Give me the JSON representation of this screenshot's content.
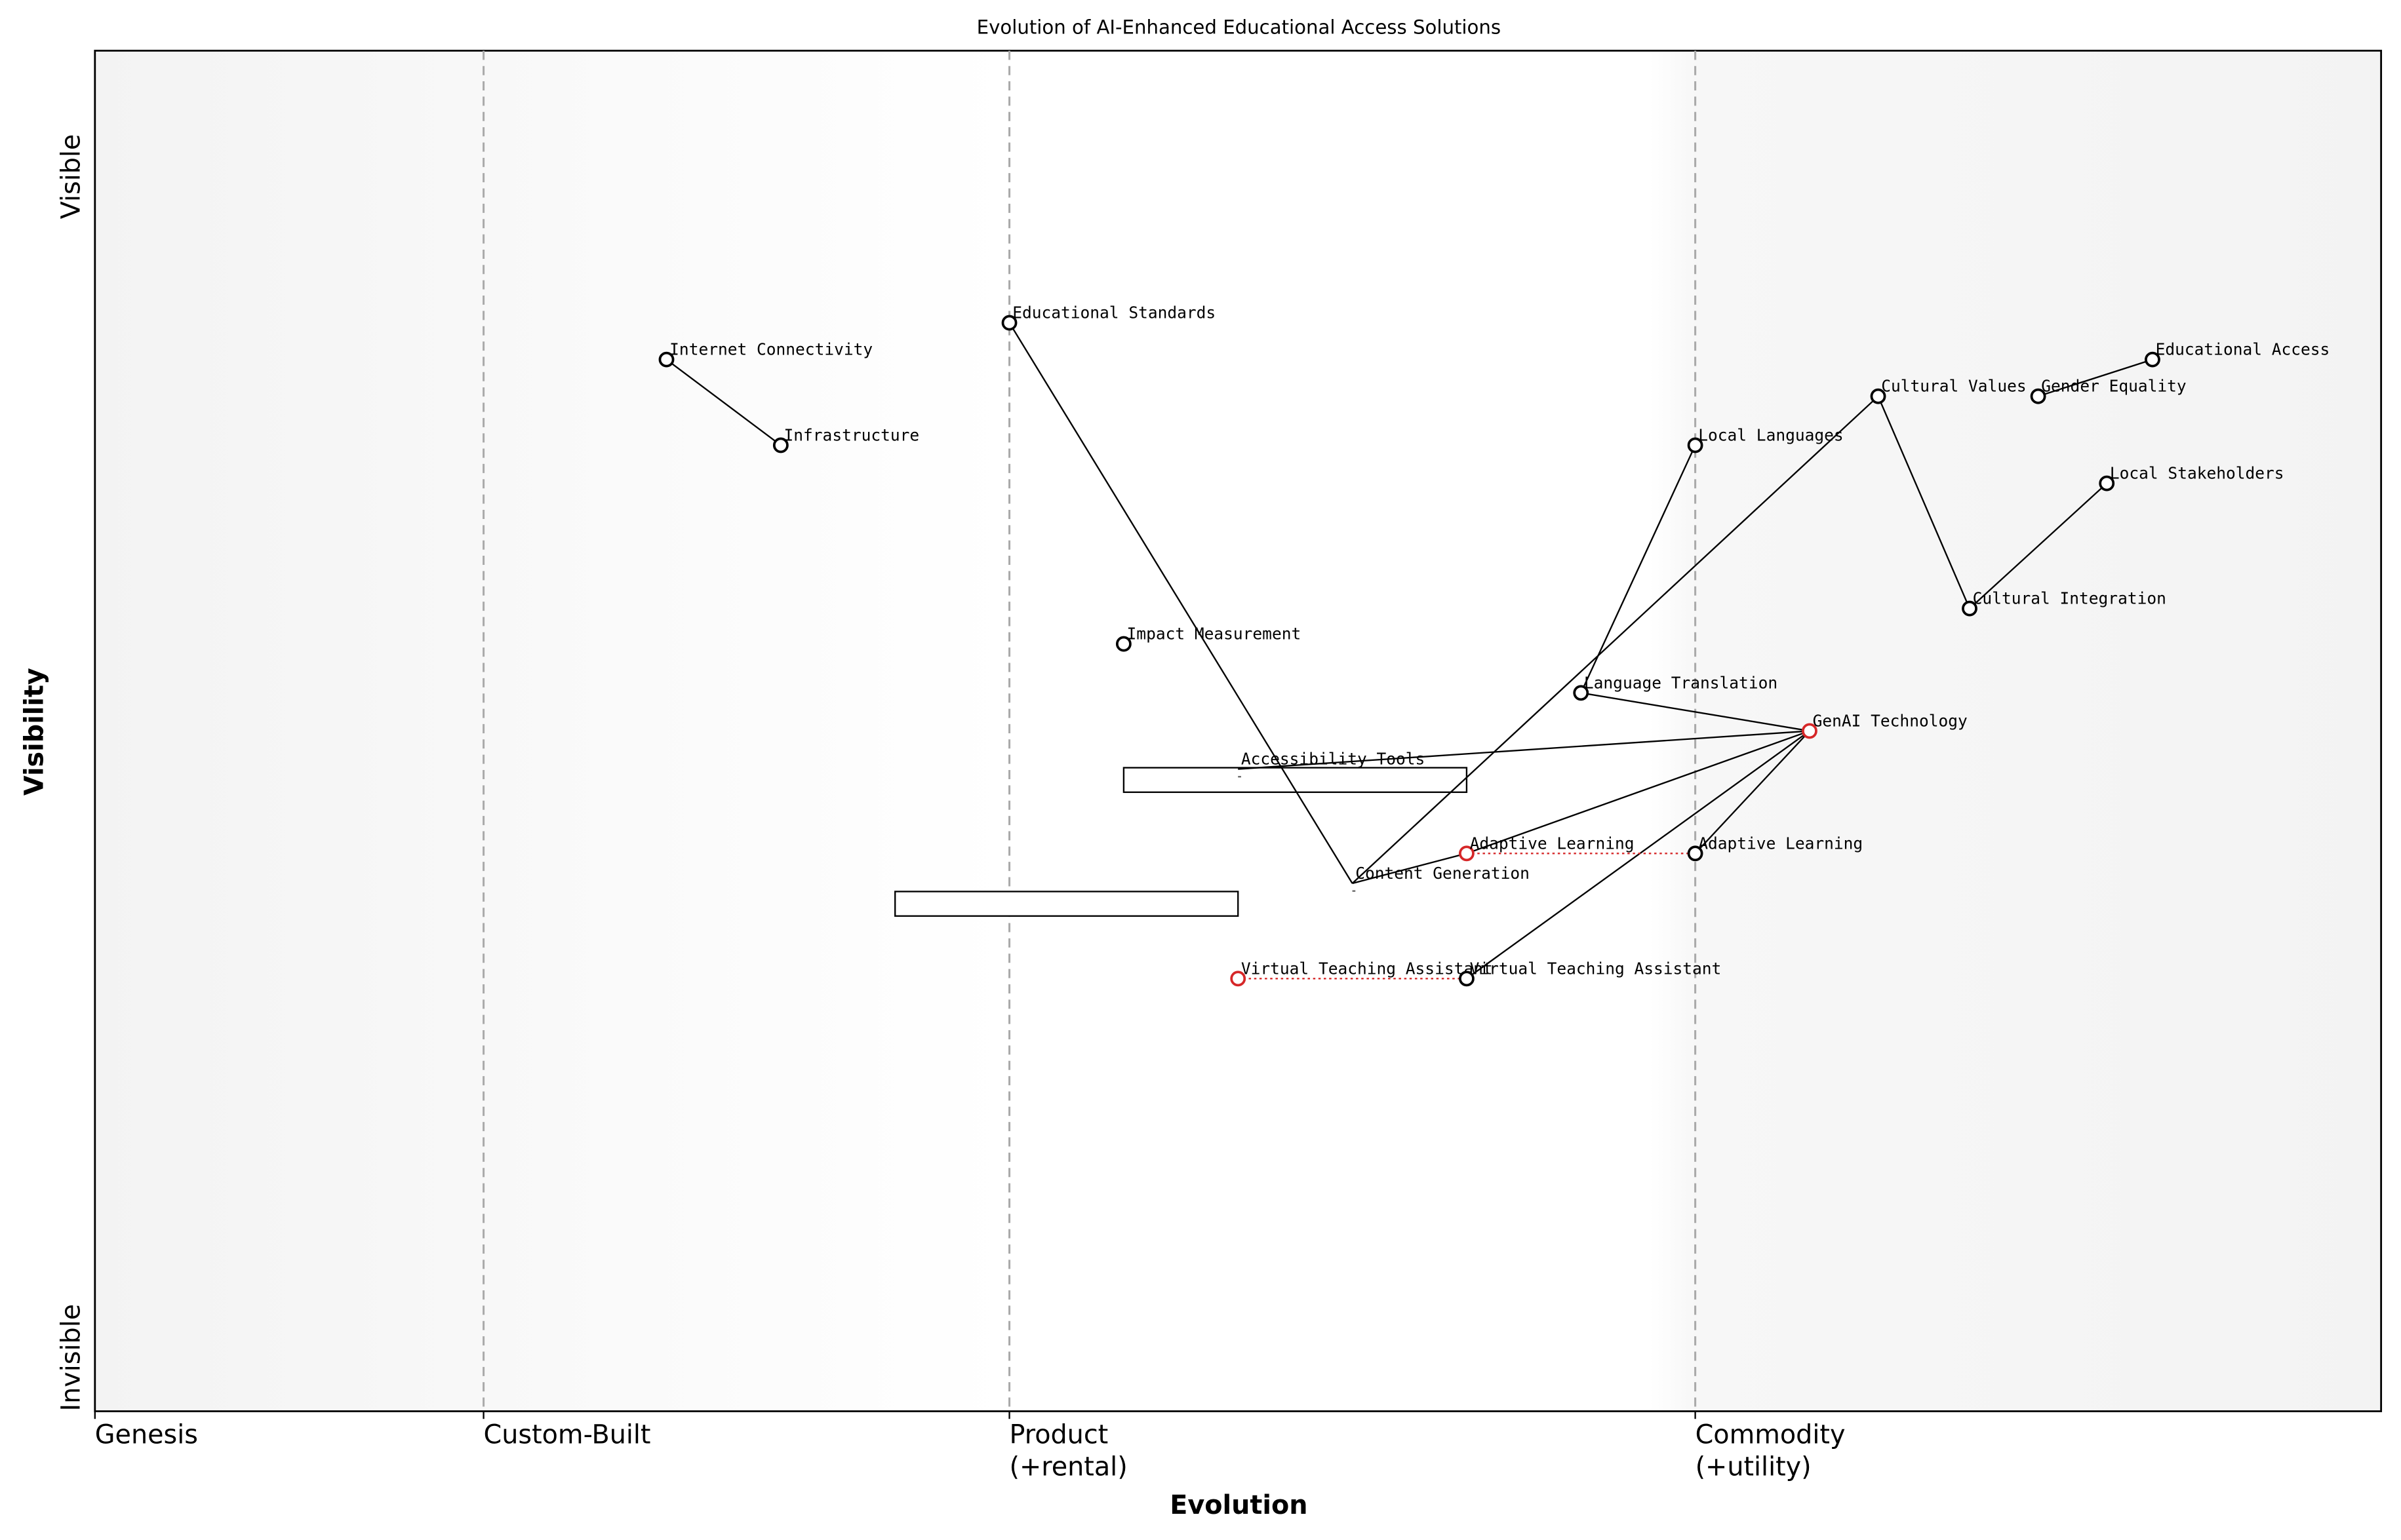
{
  "chart_data": {
    "type": "wardley",
    "title": "Evolution of AI-Enhanced Educational Access Solutions",
    "x_label": "Evolution",
    "y_label": "Visibility",
    "y_end_labels": [
      "Invisible",
      "Visible"
    ],
    "xlim": [
      0,
      1
    ],
    "ylim": [
      0,
      1
    ],
    "stages": [
      {
        "x": 0,
        "label": [
          "Genesis"
        ]
      },
      {
        "x": 0.17,
        "label": [
          "Custom-Built"
        ]
      },
      {
        "x": 0.4,
        "label": [
          "Product",
          "(+rental)"
        ]
      },
      {
        "x": 0.7,
        "label": [
          "Commodity",
          "(+utility)"
        ]
      }
    ],
    "components": [
      {
        "name": "Internet Connectivity",
        "x": 0.25,
        "y": 0.773,
        "color": "#000000"
      },
      {
        "name": "Infrastructure",
        "x": 0.3,
        "y": 0.71,
        "color": "#000000"
      },
      {
        "name": "Educational Standards",
        "x": 0.4,
        "y": 0.8,
        "color": "#000000"
      },
      {
        "name": "Impact Measurement",
        "x": 0.45,
        "y": 0.564,
        "color": "#000000"
      },
      {
        "name": "Local Languages",
        "x": 0.7,
        "y": 0.71,
        "color": "#000000"
      },
      {
        "name": "Cultural Values",
        "x": 0.78,
        "y": 0.746,
        "color": "#000000"
      },
      {
        "name": "Gender Equality",
        "x": 0.85,
        "y": 0.746,
        "color": "#000000"
      },
      {
        "name": "Educational Access",
        "x": 0.9,
        "y": 0.773,
        "color": "#000000"
      },
      {
        "name": "Local Stakeholders",
        "x": 0.88,
        "y": 0.682,
        "color": "#000000"
      },
      {
        "name": "Cultural Integration",
        "x": 0.82,
        "y": 0.59,
        "color": "#000000"
      },
      {
        "name": "Language Translation",
        "x": 0.65,
        "y": 0.528,
        "color": "#000000"
      },
      {
        "name": "GenAI Technology",
        "x": 0.75,
        "y": 0.5,
        "color": "#d62728"
      },
      {
        "name": "Accessibility Tools",
        "x": 0.5,
        "y": 0.472,
        "color": "#000000",
        "marker": false
      },
      {
        "name": "Content Generation",
        "x": 0.55,
        "y": 0.388,
        "color": "#000000",
        "marker": false
      },
      {
        "name": "Adaptive Learning",
        "x": 0.6,
        "y": 0.41,
        "color": "#d62728"
      },
      {
        "name": "Adaptive Learning",
        "x": 0.7,
        "y": 0.41,
        "color": "#000000"
      },
      {
        "name": "Virtual Teaching Assistant",
        "x": 0.5,
        "y": 0.318,
        "color": "#d62728"
      },
      {
        "name": "Virtual Teaching Assistant",
        "x": 0.6,
        "y": 0.318,
        "color": "#000000"
      }
    ],
    "links": [
      [
        0,
        1
      ],
      [
        2,
        13
      ],
      [
        5,
        13
      ],
      [
        5,
        9
      ],
      [
        9,
        8
      ],
      [
        6,
        7
      ],
      [
        4,
        10
      ],
      [
        10,
        11
      ],
      [
        12,
        11
      ],
      [
        14,
        11
      ],
      [
        15,
        11
      ],
      [
        17,
        11
      ],
      [
        13,
        14
      ]
    ],
    "evolve": [
      [
        16,
        17
      ],
      [
        14,
        15
      ]
    ],
    "pipelines": [
      {
        "x": [
          0.45,
          0.6
        ],
        "y": 0.464
      },
      {
        "x": [
          0.35,
          0.5
        ],
        "y": 0.373
      }
    ]
  }
}
